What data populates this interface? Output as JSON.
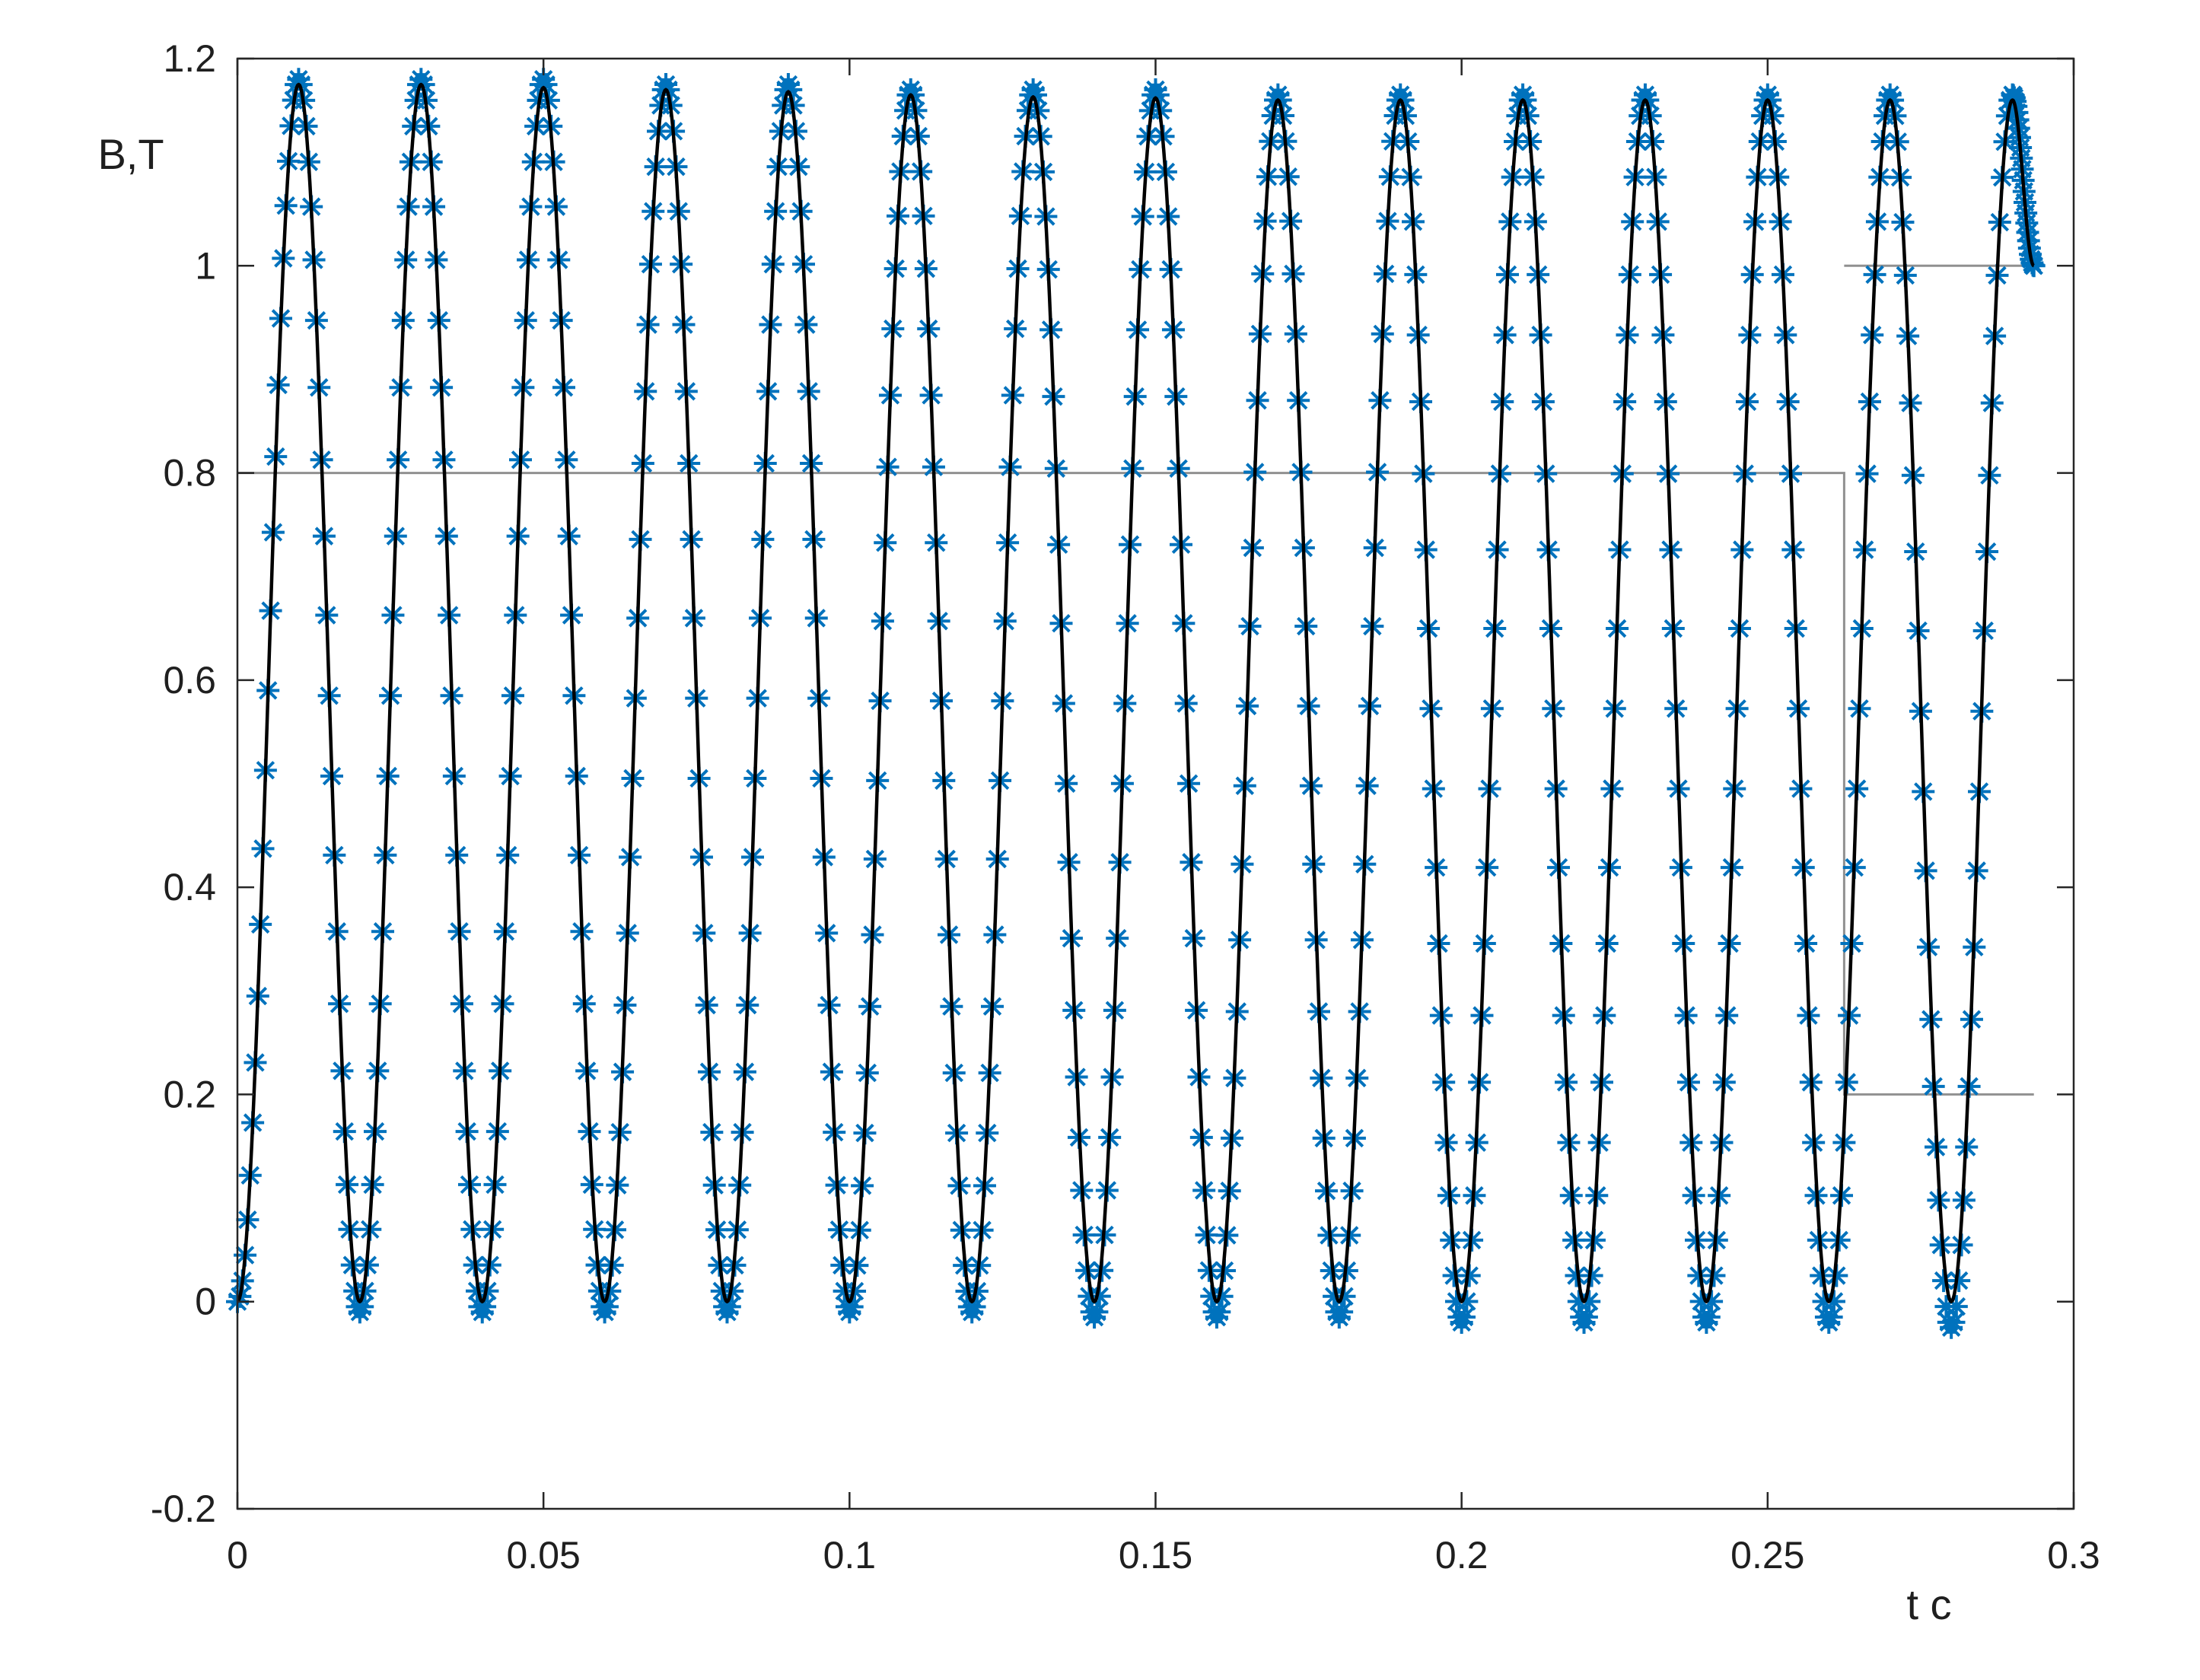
{
  "chart_data": {
    "type": "line",
    "title": "",
    "xlabel": "t c",
    "ylabel": "B,T",
    "xlim": [
      0,
      0.3
    ],
    "ylim": [
      -0.2,
      1.2
    ],
    "xticks": [
      0,
      0.05,
      0.1,
      0.15,
      0.2,
      0.25,
      0.3
    ],
    "yticks": [
      -0.2,
      0,
      0.2,
      0.4,
      0.6,
      0.8,
      1,
      1.2
    ],
    "xtick_labels": [
      "0",
      "0.05",
      "0.1",
      "0.15",
      "0.2",
      "0.25",
      "0.3"
    ],
    "ytick_labels": [
      "-0.2",
      "0",
      "0.2",
      "0.4",
      "0.6",
      "0.8",
      "1",
      "1.2"
    ],
    "grid": false,
    "legend": "none",
    "series": [
      {
        "kind": "line",
        "color": "#000000",
        "x": [
          0,
          0.01,
          0.02,
          0.03,
          0.04,
          0.05,
          0.06,
          0.07,
          0.08,
          0.09,
          0.1,
          0.11,
          0.12,
          0.13,
          0.14,
          0.15,
          0.16,
          0.17,
          0.18,
          0.19,
          0.2,
          0.21,
          0.22,
          0.23,
          0.24,
          0.25,
          0.26,
          0.27,
          0.28,
          0.29,
          0.2935
        ],
        "y": [
          0,
          1.175,
          0,
          1.175,
          0,
          1.172,
          0,
          1.17,
          0,
          1.168,
          0,
          1.165,
          0,
          1.163,
          0,
          1.162,
          0,
          1.16,
          0,
          1.16,
          0,
          1.16,
          0,
          1.16,
          0,
          1.16,
          0,
          1.16,
          0,
          1.16,
          1.0
        ]
      },
      {
        "kind": "scatter",
        "marker": "asterisk",
        "color": "#0072BD",
        "x": [
          0,
          0.01,
          0.02,
          0.03,
          0.04,
          0.05,
          0.06,
          0.07,
          0.08,
          0.09,
          0.1,
          0.11,
          0.12,
          0.13,
          0.14,
          0.15,
          0.16,
          0.17,
          0.18,
          0.19,
          0.2,
          0.21,
          0.22,
          0.23,
          0.24,
          0.25,
          0.26,
          0.27,
          0.28,
          0.29,
          0.2935
        ],
        "y": [
          0,
          1.18,
          -0.01,
          1.18,
          -0.01,
          1.18,
          -0.01,
          1.175,
          -0.01,
          1.175,
          -0.01,
          1.17,
          -0.01,
          1.17,
          -0.015,
          1.17,
          -0.015,
          1.165,
          -0.015,
          1.165,
          -0.02,
          1.165,
          -0.02,
          1.165,
          -0.02,
          1.165,
          -0.02,
          1.165,
          -0.025,
          1.165,
          1.0
        ]
      },
      {
        "kind": "step",
        "color": "#909090",
        "x": [
          0,
          0.2625,
          0.2625,
          0.2935
        ],
        "y": [
          0.8,
          0.8,
          0.2,
          0.2
        ]
      },
      {
        "kind": "segment",
        "color": "#909090",
        "x": [
          0.2625,
          0.2935
        ],
        "y": [
          1.0,
          1.0
        ]
      }
    ]
  }
}
